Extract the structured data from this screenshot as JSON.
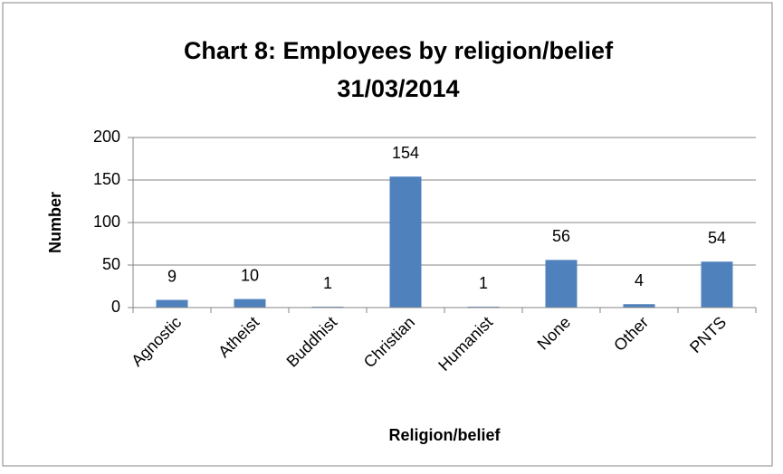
{
  "chart_data": {
    "type": "bar",
    "title": [
      "Chart 8: Employees by religion/belief",
      "31/03/2014"
    ],
    "x_label": "Religion/belief",
    "y_label": "Number",
    "categories": [
      "Agnostic",
      "Atheist",
      "Buddhist",
      "Christian",
      "Humanist",
      "None",
      "Other",
      "PNTS"
    ],
    "values": [
      9,
      10,
      1,
      154,
      1,
      56,
      4,
      54
    ],
    "color": "#4f81bd",
    "ylim": [
      0,
      200
    ],
    "yticks": [
      0,
      50,
      100,
      150,
      200
    ],
    "grid": true
  }
}
